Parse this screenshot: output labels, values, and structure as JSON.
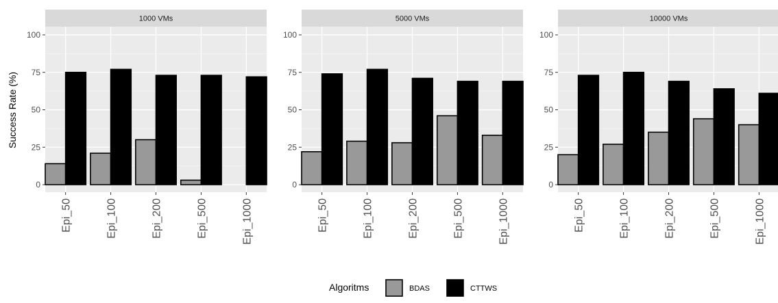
{
  "chart_data": {
    "type": "bar",
    "ylabel": "Success Rate (%)",
    "ylim": [
      0,
      100
    ],
    "yticks": [
      0,
      25,
      50,
      75,
      100
    ],
    "categories": [
      "Epi_50",
      "Epi_100",
      "Epi_200",
      "Epi_500",
      "Epi_1000"
    ],
    "grid": true,
    "legend": {
      "title": "Algoritms",
      "position": "bottom"
    },
    "series_styles": [
      {
        "name": "BDAS",
        "color": "#999999"
      },
      {
        "name": "CTTWS",
        "color": "#000000"
      }
    ],
    "panels": [
      {
        "title": "1000 VMs",
        "series": [
          {
            "name": "BDAS",
            "values": [
              14,
              21,
              30,
              3,
              0
            ]
          },
          {
            "name": "CTTWS",
            "values": [
              75,
              77,
              73,
              73,
              72
            ]
          }
        ]
      },
      {
        "title": "5000 VMs",
        "series": [
          {
            "name": "BDAS",
            "values": [
              22,
              29,
              28,
              46,
              33
            ]
          },
          {
            "name": "CTTWS",
            "values": [
              74,
              77,
              71,
              69,
              69
            ]
          }
        ]
      },
      {
        "title": "10000 VMs",
        "series": [
          {
            "name": "BDAS",
            "values": [
              20,
              27,
              35,
              44,
              40
            ]
          },
          {
            "name": "CTTWS",
            "values": [
              73,
              75,
              69,
              64,
              61
            ]
          }
        ]
      }
    ]
  }
}
